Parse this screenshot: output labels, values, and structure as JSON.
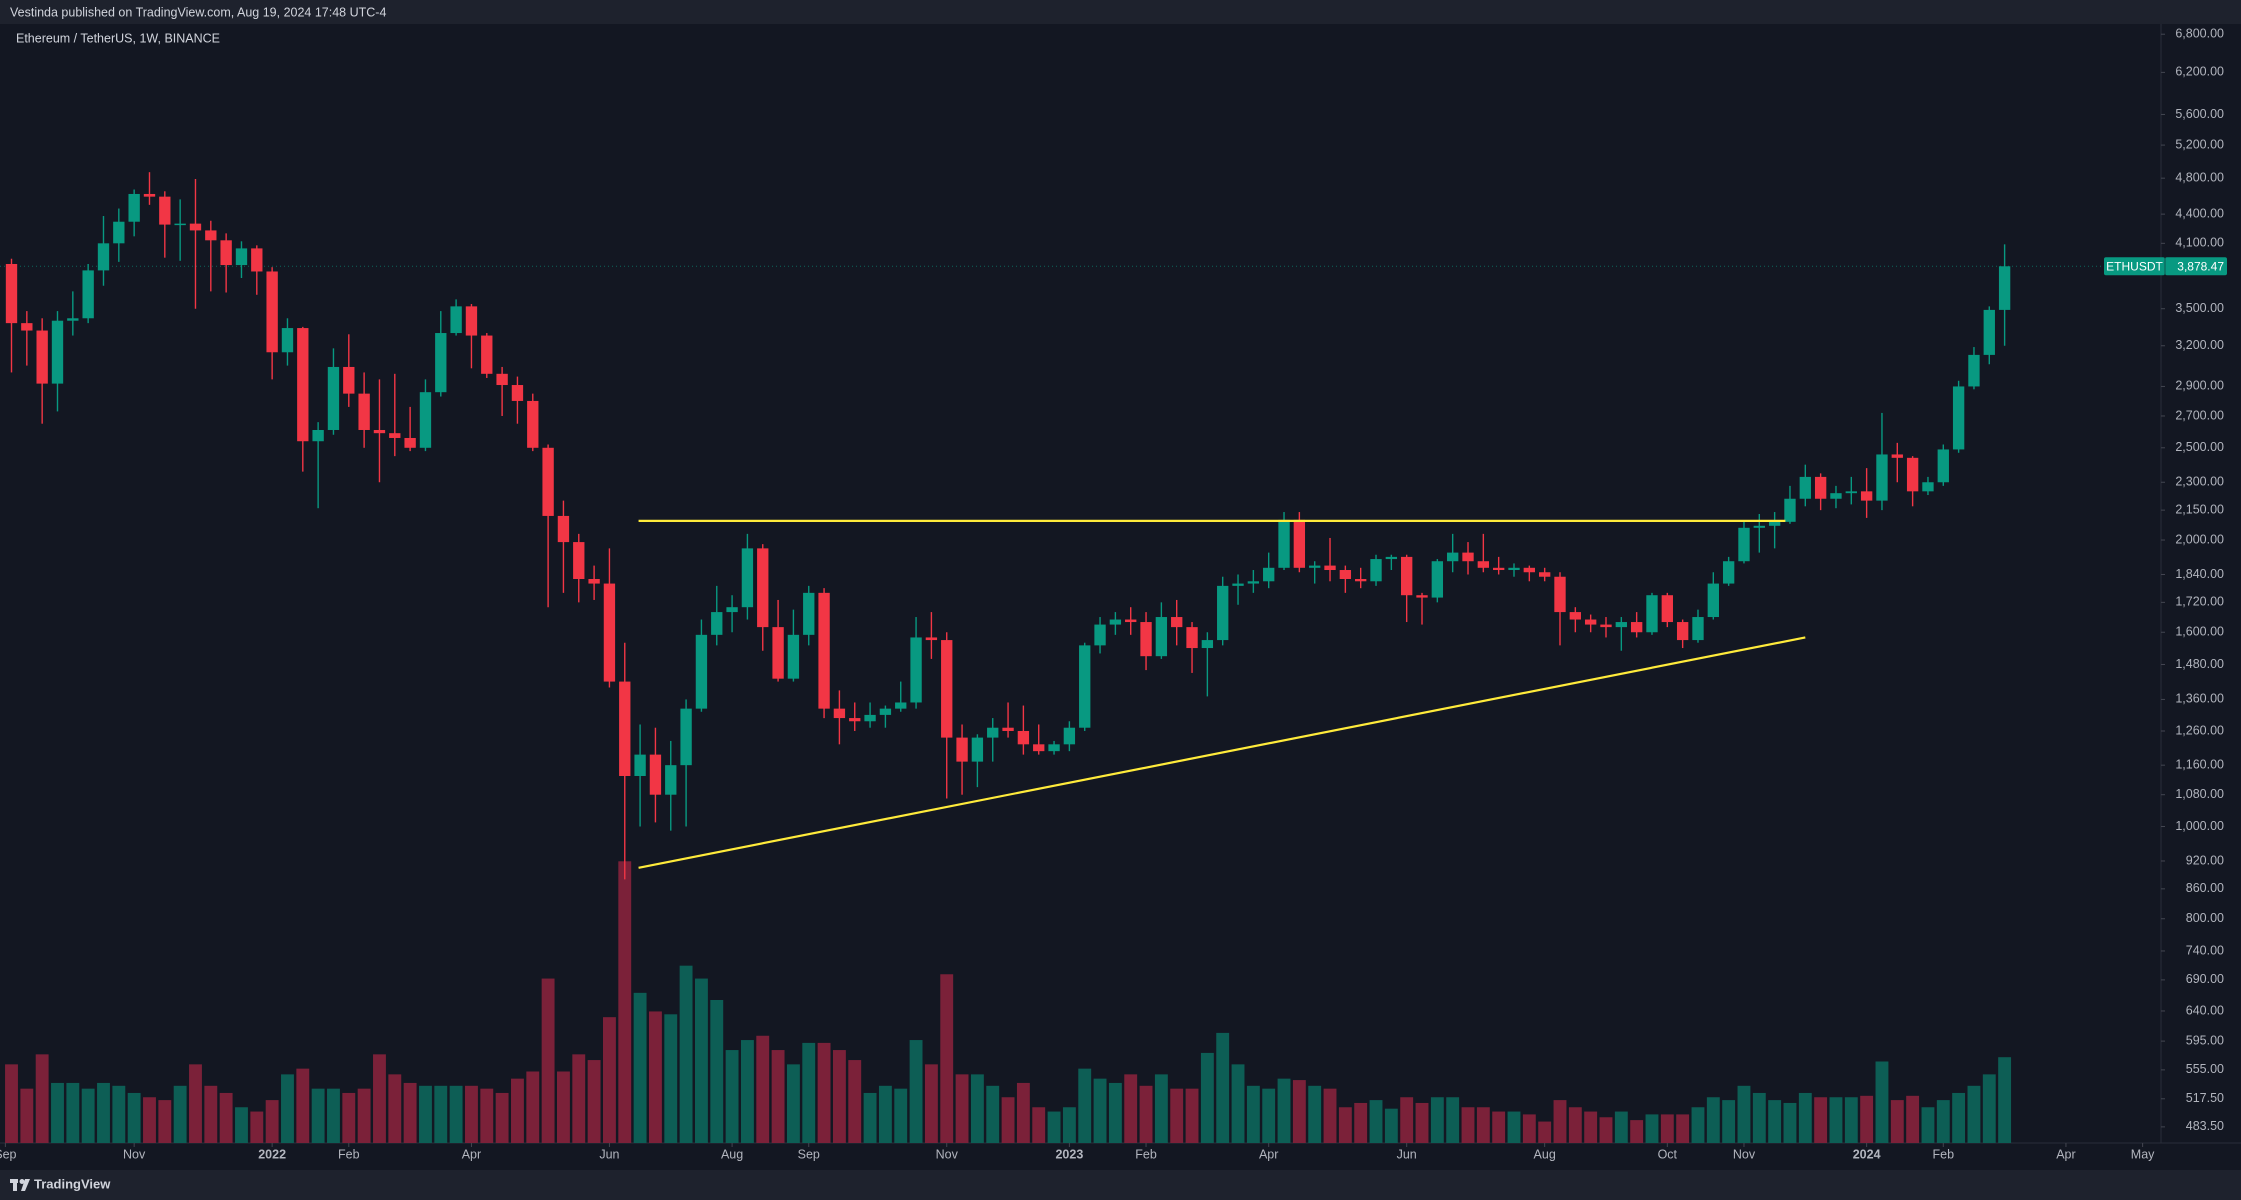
{
  "header": {
    "publisher_text": "Vestinda published on TradingView.com, Aug 19, 2024 17:48 UTC-4"
  },
  "footer": {
    "brand": "TradingView"
  },
  "chart_data": {
    "type": "candlestick",
    "title": "Ethereum / TetherUS, 1W, BINANCE",
    "symbol": "ETHUSDT",
    "last_price": {
      "value": 3878.47,
      "label": "3,878.47"
    },
    "open": [
      3900,
      3380,
      3320,
      2920,
      3400,
      3420,
      3840,
      4100,
      4320,
      4620,
      4590,
      4290,
      4300,
      4230,
      4130,
      3890,
      4050,
      3830,
      3150,
      3340,
      2540,
      2610,
      3040,
      2850,
      2610,
      2590,
      2560,
      2500,
      2860,
      3300,
      3520,
      3280,
      2990,
      2910,
      2800,
      2500,
      2120,
      1990,
      1820,
      1800,
      1420,
      1130,
      1190,
      1080,
      1160,
      1330,
      1590,
      1680,
      1700,
      1960,
      1620,
      1430,
      1590,
      1760,
      1330,
      1300,
      1290,
      1310,
      1330,
      1350,
      1580,
      1570,
      1240,
      1170,
      1240,
      1270,
      1260,
      1220,
      1200,
      1220,
      1270,
      1550,
      1630,
      1650,
      1640,
      1510,
      1660,
      1620,
      1540,
      1570,
      1790,
      1800,
      1810,
      1870,
      2100,
      1870,
      1880,
      1860,
      1820,
      1810,
      1910,
      1920,
      1750,
      1740,
      1900,
      1940,
      1900,
      1870,
      1860,
      1870,
      1850,
      1830,
      1680,
      1650,
      1630,
      1620,
      1640,
      1600,
      1750,
      1640,
      1570,
      1660,
      1800,
      1900,
      2060,
      2070,
      2090,
      2210,
      2330,
      2210,
      2240,
      2250,
      2200,
      2460,
      2440,
      2250,
      2300,
      2490,
      2900,
      3130,
      3490
    ],
    "high": [
      3950,
      3480,
      3420,
      3480,
      3650,
      3900,
      4380,
      4460,
      4670,
      4870,
      4650,
      4560,
      4790,
      4330,
      4200,
      4120,
      4080,
      3870,
      3420,
      3350,
      2660,
      3180,
      3290,
      3000,
      2950,
      2990,
      2760,
      2950,
      3480,
      3580,
      3540,
      3300,
      3040,
      2970,
      2850,
      2520,
      2200,
      2030,
      1880,
      1960,
      1560,
      1280,
      1270,
      1230,
      1360,
      1650,
      1790,
      1750,
      2030,
      1980,
      1730,
      1690,
      1790,
      1780,
      1390,
      1350,
      1350,
      1340,
      1420,
      1660,
      1680,
      1600,
      1280,
      1250,
      1300,
      1350,
      1340,
      1280,
      1230,
      1290,
      1560,
      1660,
      1680,
      1700,
      1680,
      1720,
      1730,
      1640,
      1600,
      1830,
      1840,
      1860,
      1940,
      2140,
      2140,
      1900,
      2010,
      1880,
      1870,
      1930,
      1930,
      1930,
      1760,
      1910,
      2030,
      1990,
      2030,
      1920,
      1890,
      1880,
      1870,
      1850,
      1700,
      1670,
      1660,
      1660,
      1680,
      1760,
      1760,
      1650,
      1690,
      1850,
      1920,
      2090,
      2130,
      2140,
      2280,
      2400,
      2350,
      2280,
      2330,
      2380,
      2720,
      2530,
      2450,
      2330,
      2520,
      2940,
      3190,
      3520,
      4090
    ],
    "low": [
      3000,
      3050,
      2650,
      2730,
      3280,
      3380,
      3700,
      3920,
      4170,
      4500,
      3960,
      3930,
      3500,
      3650,
      3640,
      3770,
      3620,
      2950,
      3050,
      2360,
      2160,
      2580,
      2760,
      2500,
      2300,
      2450,
      2480,
      2480,
      2830,
      3280,
      3030,
      2960,
      2700,
      2650,
      2480,
      1700,
      1760,
      1720,
      1730,
      1400,
      880,
      1000,
      1010,
      990,
      1000,
      1320,
      1550,
      1600,
      1650,
      1530,
      1420,
      1420,
      1550,
      1300,
      1220,
      1260,
      1270,
      1270,
      1320,
      1330,
      1500,
      1070,
      1080,
      1100,
      1170,
      1240,
      1190,
      1190,
      1190,
      1200,
      1260,
      1520,
      1590,
      1590,
      1460,
      1500,
      1550,
      1450,
      1370,
      1550,
      1710,
      1760,
      1780,
      1860,
      1850,
      1800,
      1810,
      1760,
      1780,
      1790,
      1860,
      1640,
      1630,
      1720,
      1850,
      1840,
      1850,
      1840,
      1830,
      1810,
      1810,
      1550,
      1600,
      1600,
      1580,
      1530,
      1580,
      1590,
      1620,
      1540,
      1560,
      1650,
      1790,
      1890,
      1940,
      1960,
      2080,
      2170,
      2150,
      2160,
      2180,
      2110,
      2150,
      2300,
      2170,
      2230,
      2280,
      2470,
      2880,
      3060,
      3200
    ],
    "close": [
      3380,
      3320,
      2920,
      3400,
      3420,
      3840,
      4100,
      4320,
      4620,
      4590,
      4290,
      4300,
      4230,
      4130,
      3890,
      4050,
      3830,
      3150,
      3340,
      2540,
      2610,
      3040,
      2850,
      2610,
      2590,
      2560,
      2500,
      2860,
      3300,
      3520,
      3280,
      2990,
      2910,
      2800,
      2500,
      2120,
      1990,
      1820,
      1800,
      1420,
      1130,
      1190,
      1080,
      1160,
      1330,
      1590,
      1680,
      1700,
      1960,
      1620,
      1430,
      1590,
      1760,
      1330,
      1300,
      1290,
      1310,
      1330,
      1350,
      1580,
      1570,
      1240,
      1170,
      1240,
      1270,
      1260,
      1220,
      1200,
      1220,
      1270,
      1550,
      1630,
      1650,
      1640,
      1510,
      1660,
      1620,
      1540,
      1570,
      1790,
      1800,
      1810,
      1870,
      2100,
      1870,
      1880,
      1860,
      1820,
      1810,
      1910,
      1920,
      1750,
      1740,
      1900,
      1940,
      1900,
      1870,
      1860,
      1870,
      1850,
      1830,
      1680,
      1650,
      1630,
      1620,
      1640,
      1600,
      1750,
      1640,
      1570,
      1660,
      1800,
      1900,
      2060,
      2070,
      2090,
      2210,
      2330,
      2210,
      2240,
      2250,
      2200,
      2460,
      2440,
      2250,
      2300,
      2490,
      2900,
      3130,
      3490,
      3878.47
    ],
    "volume": [
      55,
      38,
      62,
      42,
      42,
      38,
      42,
      40,
      35,
      32,
      30,
      40,
      55,
      40,
      35,
      25,
      22,
      30,
      48,
      52,
      38,
      38,
      35,
      38,
      62,
      48,
      42,
      40,
      40,
      40,
      40,
      38,
      35,
      45,
      50,
      115,
      50,
      62,
      58,
      88,
      197,
      105,
      92,
      90,
      124,
      115,
      100,
      65,
      72,
      75,
      65,
      55,
      70,
      70,
      65,
      58,
      35,
      40,
      38,
      72,
      55,
      118,
      48,
      48,
      40,
      32,
      42,
      25,
      22,
      25,
      52,
      45,
      42,
      48,
      40,
      48,
      38,
      38,
      63,
      77,
      55,
      40,
      38,
      45,
      44,
      40,
      38,
      25,
      28,
      30,
      24,
      32,
      28,
      32,
      32,
      25,
      25,
      22,
      22,
      20,
      15,
      30,
      25,
      22,
      18,
      22,
      16,
      20,
      20,
      20,
      25,
      32,
      30,
      40,
      35,
      30,
      28,
      35,
      32,
      32,
      32,
      33,
      57,
      30,
      33,
      25,
      30,
      35,
      40,
      48,
      60
    ],
    "up_color": "#089981",
    "down_color": "#f23645",
    "volume_up_color": "#0d5e55",
    "volume_down_color": "#7b2139",
    "log_scale": true,
    "ylim": [
      465,
      6970
    ],
    "yticks": [
      {
        "value": 6800,
        "label": "6,800.00"
      },
      {
        "value": 6200,
        "label": "6,200.00"
      },
      {
        "value": 5600,
        "label": "5,600.00"
      },
      {
        "value": 5200,
        "label": "5,200.00"
      },
      {
        "value": 4800,
        "label": "4,800.00"
      },
      {
        "value": 4400,
        "label": "4,400.00"
      },
      {
        "value": 4100,
        "label": "4,100.00"
      },
      {
        "value": 3500,
        "label": "3,500.00"
      },
      {
        "value": 3200,
        "label": "3,200.00"
      },
      {
        "value": 2900,
        "label": "2,900.00"
      },
      {
        "value": 2700,
        "label": "2,700.00"
      },
      {
        "value": 2500,
        "label": "2,500.00"
      },
      {
        "value": 2300,
        "label": "2,300.00"
      },
      {
        "value": 2150,
        "label": "2,150.00"
      },
      {
        "value": 2000,
        "label": "2,000.00"
      },
      {
        "value": 1840,
        "label": "1,840.00"
      },
      {
        "value": 1720,
        "label": "1,720.00"
      },
      {
        "value": 1600,
        "label": "1,600.00"
      },
      {
        "value": 1480,
        "label": "1,480.00"
      },
      {
        "value": 1360,
        "label": "1,360.00"
      },
      {
        "value": 1260,
        "label": "1,260.00"
      },
      {
        "value": 1160,
        "label": "1,160.00"
      },
      {
        "value": 1080,
        "label": "1,080.00"
      },
      {
        "value": 1000,
        "label": "1,000.00"
      },
      {
        "value": 920,
        "label": "920.00"
      },
      {
        "value": 860,
        "label": "860.00"
      },
      {
        "value": 800,
        "label": "800.00"
      },
      {
        "value": 740,
        "label": "740.00"
      },
      {
        "value": 690,
        "label": "690.00"
      },
      {
        "value": 640,
        "label": "640.00"
      },
      {
        "value": 595,
        "label": "595.00"
      },
      {
        "value": 555,
        "label": "555.00"
      },
      {
        "value": 517.5,
        "label": "517.50"
      },
      {
        "value": 483.5,
        "label": "483.50"
      }
    ],
    "xlim": [
      -0.75,
      140.2
    ],
    "xticks": [
      {
        "value": -0.4,
        "label": "Sep"
      },
      {
        "value": 8,
        "label": "Nov"
      },
      {
        "value": 17,
        "label": "2022"
      },
      {
        "value": 22,
        "label": "Feb"
      },
      {
        "value": 30,
        "label": "Apr"
      },
      {
        "value": 39,
        "label": "Jun"
      },
      {
        "value": 47,
        "label": "Aug"
      },
      {
        "value": 52,
        "label": "Sep"
      },
      {
        "value": 61,
        "label": "Nov"
      },
      {
        "value": 69,
        "label": "2023"
      },
      {
        "value": 74,
        "label": "Feb"
      },
      {
        "value": 82,
        "label": "Apr"
      },
      {
        "value": 91,
        "label": "Jun"
      },
      {
        "value": 100,
        "label": "Aug"
      },
      {
        "value": 108,
        "label": "Oct"
      },
      {
        "value": 113,
        "label": "Nov"
      },
      {
        "value": 121,
        "label": "2024"
      },
      {
        "value": 126,
        "label": "Feb"
      },
      {
        "value": 134,
        "label": "Apr"
      },
      {
        "value": 139,
        "label": "May"
      }
    ],
    "trendlines": [
      {
        "color": "#ffeb3b",
        "points": [
          [
            40.9,
            2095
          ],
          [
            115.7,
            2095
          ]
        ]
      },
      {
        "color": "#ffeb3b",
        "points": [
          [
            40.9,
            905
          ],
          [
            117,
            1580
          ]
        ]
      }
    ]
  }
}
